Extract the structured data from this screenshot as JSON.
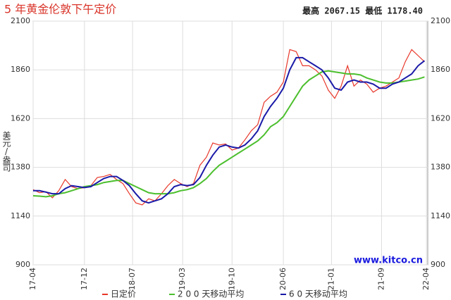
{
  "chart_data": {
    "type": "line",
    "title": "5 年黄金伦敦下午定价",
    "stats": "最高 2067.15  最低 1178.40",
    "y_label": "美元/盎司",
    "watermark": "www.kitco.cn",
    "x": [
      0,
      1,
      2,
      3,
      4,
      5,
      6,
      7,
      8,
      9,
      10,
      11,
      12,
      13,
      14,
      15,
      16,
      17,
      18,
      19,
      20,
      21,
      22,
      23,
      24,
      25,
      26,
      27,
      28,
      29,
      30,
      31,
      32,
      33,
      34,
      35,
      36,
      37,
      38,
      39,
      40,
      41,
      42,
      43,
      44,
      45,
      46,
      47,
      48,
      49,
      50,
      51,
      52,
      53,
      54,
      55,
      56,
      57,
      58,
      59,
      60,
      61
    ],
    "xlim": [
      0,
      61.5
    ],
    "xticks": [
      {
        "value": 0,
        "label": "17-04"
      },
      {
        "value": 8,
        "label": "17-12"
      },
      {
        "value": 15.5,
        "label": "18-07"
      },
      {
        "value": 23.3,
        "label": "19-03"
      },
      {
        "value": 31,
        "label": "19-10"
      },
      {
        "value": 39,
        "label": "20-06"
      },
      {
        "value": 46.5,
        "label": "21-01"
      },
      {
        "value": 54.3,
        "label": "21-09"
      },
      {
        "value": 61.3,
        "label": "22-04"
      }
    ],
    "ylim": [
      900,
      2100
    ],
    "yticks": [
      900,
      1140,
      1380,
      1620,
      1860,
      2100
    ],
    "grid": true,
    "series": [
      {
        "name": "日定价",
        "color": "#e8372a",
        "values": [
          1270,
          1255,
          1260,
          1230,
          1265,
          1320,
          1285,
          1275,
          1280,
          1290,
          1330,
          1335,
          1345,
          1320,
          1300,
          1250,
          1205,
          1195,
          1225,
          1215,
          1250,
          1290,
          1320,
          1300,
          1285,
          1300,
          1390,
          1430,
          1500,
          1490,
          1495,
          1465,
          1475,
          1515,
          1560,
          1590,
          1700,
          1730,
          1750,
          1800,
          1960,
          1950,
          1880,
          1880,
          1860,
          1830,
          1760,
          1720,
          1780,
          1880,
          1780,
          1810,
          1790,
          1750,
          1770,
          1780,
          1800,
          1820,
          1900,
          1960,
          1930,
          1900
        ]
      },
      {
        "name": "2 0 0 天移动平均",
        "color": "#4cbf2e",
        "values": [
          1240,
          1238,
          1235,
          1240,
          1250,
          1255,
          1265,
          1275,
          1285,
          1290,
          1295,
          1305,
          1310,
          1315,
          1315,
          1300,
          1285,
          1270,
          1255,
          1250,
          1250,
          1250,
          1255,
          1265,
          1270,
          1280,
          1300,
          1325,
          1360,
          1390,
          1410,
          1430,
          1450,
          1470,
          1490,
          1510,
          1540,
          1580,
          1600,
          1630,
          1680,
          1730,
          1780,
          1810,
          1830,
          1850,
          1855,
          1850,
          1845,
          1840,
          1840,
          1835,
          1820,
          1810,
          1800,
          1795,
          1795,
          1800,
          1805,
          1810,
          1815,
          1825
        ]
      },
      {
        "name": "6 0 天移动平均",
        "color": "#1a1aa8",
        "values": [
          1265,
          1265,
          1258,
          1250,
          1250,
          1275,
          1290,
          1285,
          1280,
          1285,
          1305,
          1325,
          1335,
          1335,
          1315,
          1290,
          1250,
          1215,
          1205,
          1215,
          1225,
          1250,
          1285,
          1295,
          1290,
          1295,
          1330,
          1390,
          1440,
          1480,
          1490,
          1480,
          1475,
          1490,
          1520,
          1560,
          1630,
          1680,
          1720,
          1770,
          1860,
          1920,
          1920,
          1900,
          1880,
          1860,
          1820,
          1770,
          1760,
          1800,
          1810,
          1800,
          1800,
          1790,
          1770,
          1770,
          1790,
          1800,
          1820,
          1840,
          1880,
          1905
        ]
      }
    ]
  }
}
